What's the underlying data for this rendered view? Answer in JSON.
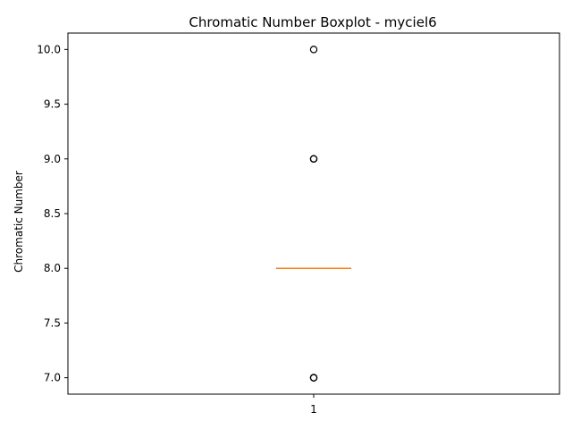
{
  "chart_data": {
    "type": "boxplot",
    "title": "Chromatic Number Boxplot - myciel6",
    "xlabel": "",
    "ylabel": "Chromatic Number",
    "categories": [
      "1"
    ],
    "ylim": [
      6.85,
      10.15
    ],
    "yticks": [
      7.0,
      7.5,
      8.0,
      8.5,
      9.0,
      9.5,
      10.0
    ],
    "ytick_labels": [
      "7.0",
      "7.5",
      "8.0",
      "8.5",
      "9.0",
      "9.5",
      "10.0"
    ],
    "grid": false,
    "boxes": [
      {
        "category": "1",
        "q1": 8.0,
        "median": 8.0,
        "q3": 8.0,
        "whisker_low": 8.0,
        "whisker_high": 8.0,
        "outliers": [
          7.0,
          7.0,
          7.0,
          9.0,
          9.0,
          9.0,
          10.0
        ]
      }
    ],
    "colors": {
      "box": "#000000",
      "median": "#ff7f0e",
      "outlier": "#000000"
    }
  }
}
